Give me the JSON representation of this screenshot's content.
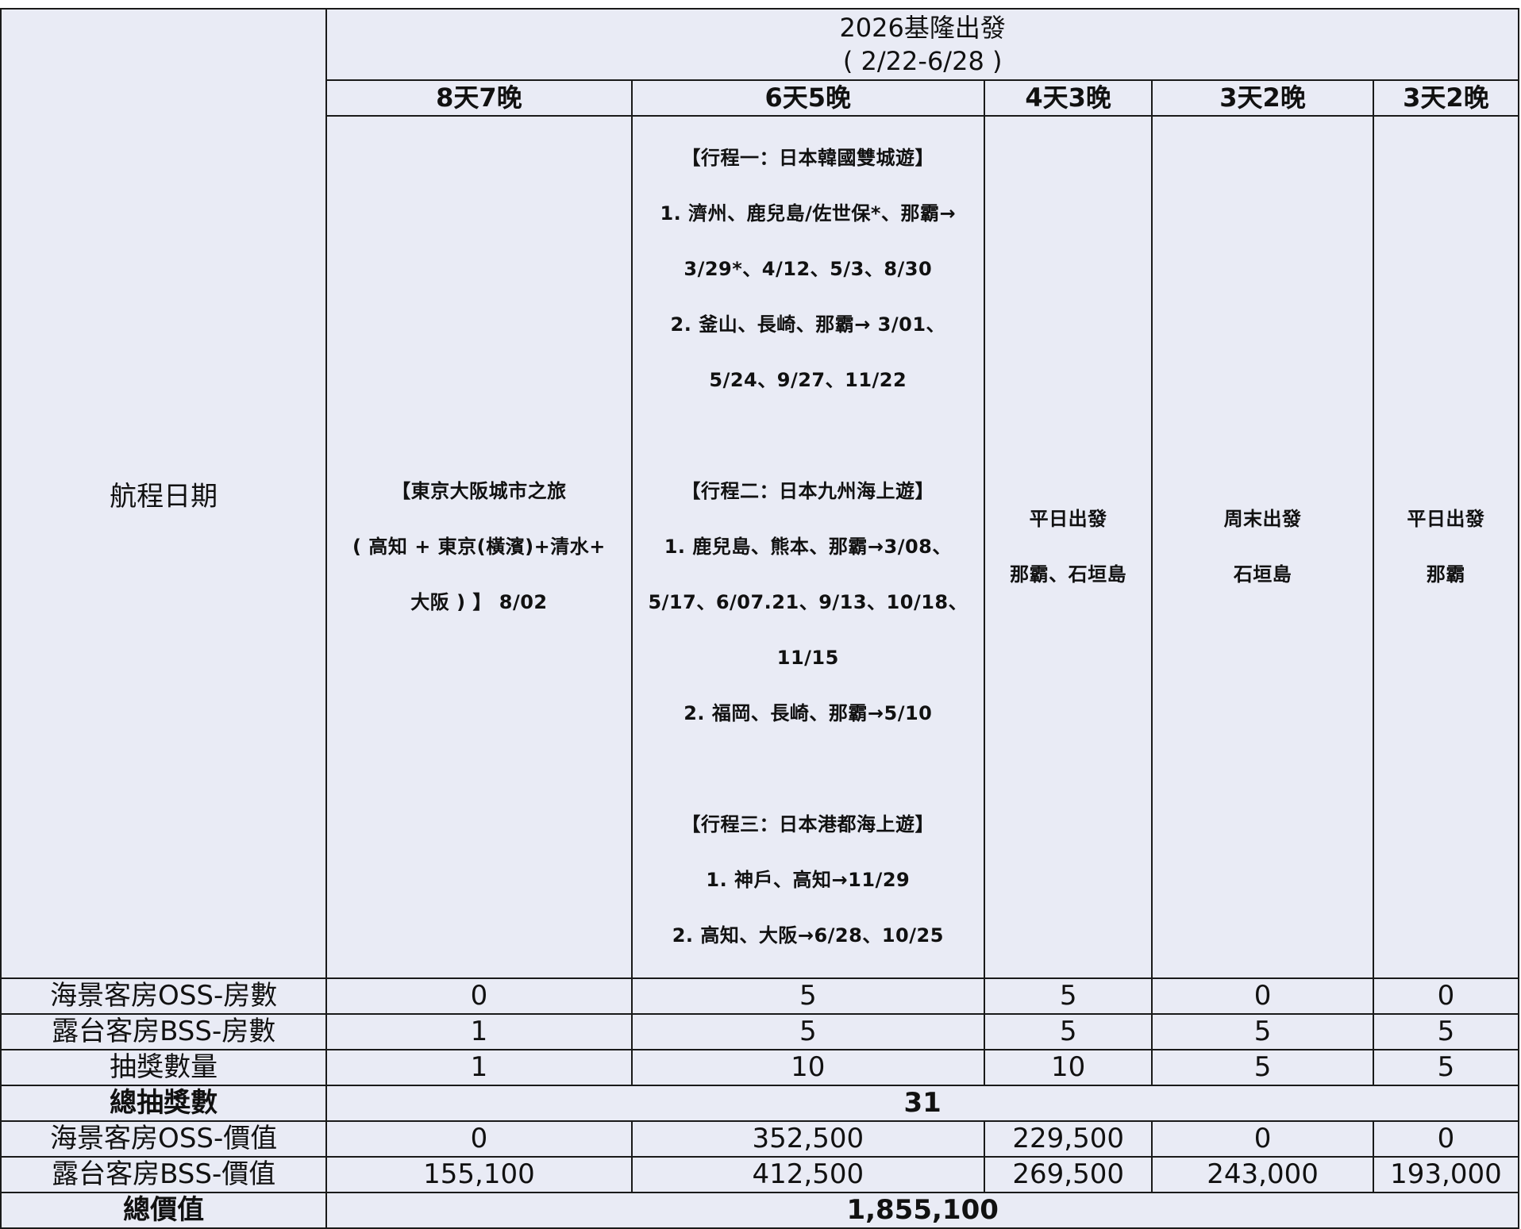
{
  "header": {
    "title": "2026基隆出發",
    "date_range": "( 2/22-6/28 )"
  },
  "row_label_itinerary": "航程日期",
  "columns": [
    {
      "duration": "8天7晚",
      "itinerary": [
        "【東京大阪城市之旅",
        "( 高知 + 東京(橫濱)+清水+",
        "大阪 ) 】 8/02"
      ]
    },
    {
      "duration": "6天5晚",
      "itinerary_groups": [
        [
          "【行程一：日本韓國雙城遊】",
          "1. 濟州、鹿兒島/佐世保*、那霸→",
          "3/29*、4/12、5/3、8/30",
          "2. 釜山、長崎、那霸→ 3/01、",
          "5/24、9/27、11/22"
        ],
        [
          "【行程二：日本九州海上遊】",
          "1. 鹿兒島、熊本、那霸→3/08、",
          "5/17、6/07.21、9/13、10/18、",
          "11/15",
          "2. 福岡、長崎、那霸→5/10"
        ],
        [
          "【行程三：日本港都海上遊】",
          "1. 神戶、高知→11/29",
          "2. 高知、大阪→6/28、10/25"
        ]
      ]
    },
    {
      "duration": "4天3晚",
      "itinerary": [
        "平日出發",
        "那霸、石垣島"
      ]
    },
    {
      "duration": "3天2晚",
      "itinerary": [
        "周末出發",
        "石垣島"
      ]
    },
    {
      "duration": "3天2晚",
      "itinerary": [
        "平日出發",
        "那霸"
      ]
    }
  ],
  "rows": [
    {
      "label": "海景客房OSS-房數",
      "values": [
        "0",
        "5",
        "5",
        "0",
        "0"
      ]
    },
    {
      "label": "露台客房BSS-房數",
      "values": [
        "1",
        "5",
        "5",
        "5",
        "5"
      ]
    },
    {
      "label": "抽獎數量",
      "values": [
        "1",
        "10",
        "10",
        "5",
        "5"
      ]
    }
  ],
  "total_draws": {
    "label": "總抽獎數",
    "value": "31"
  },
  "value_rows": [
    {
      "label": "海景客房OSS-價值",
      "values": [
        "0",
        "352,500",
        "229,500",
        "0",
        "0"
      ]
    },
    {
      "label": "露台客房BSS-價值",
      "values": [
        "155,100",
        "412,500",
        "269,500",
        "243,000",
        "193,000"
      ]
    }
  ],
  "total_value": {
    "label": "總價值",
    "value": "1,855,100"
  },
  "colors": {
    "cell_bg": "#E9EBF5",
    "total_bg": "#FFF2CC",
    "border": "#1a1a1a"
  }
}
